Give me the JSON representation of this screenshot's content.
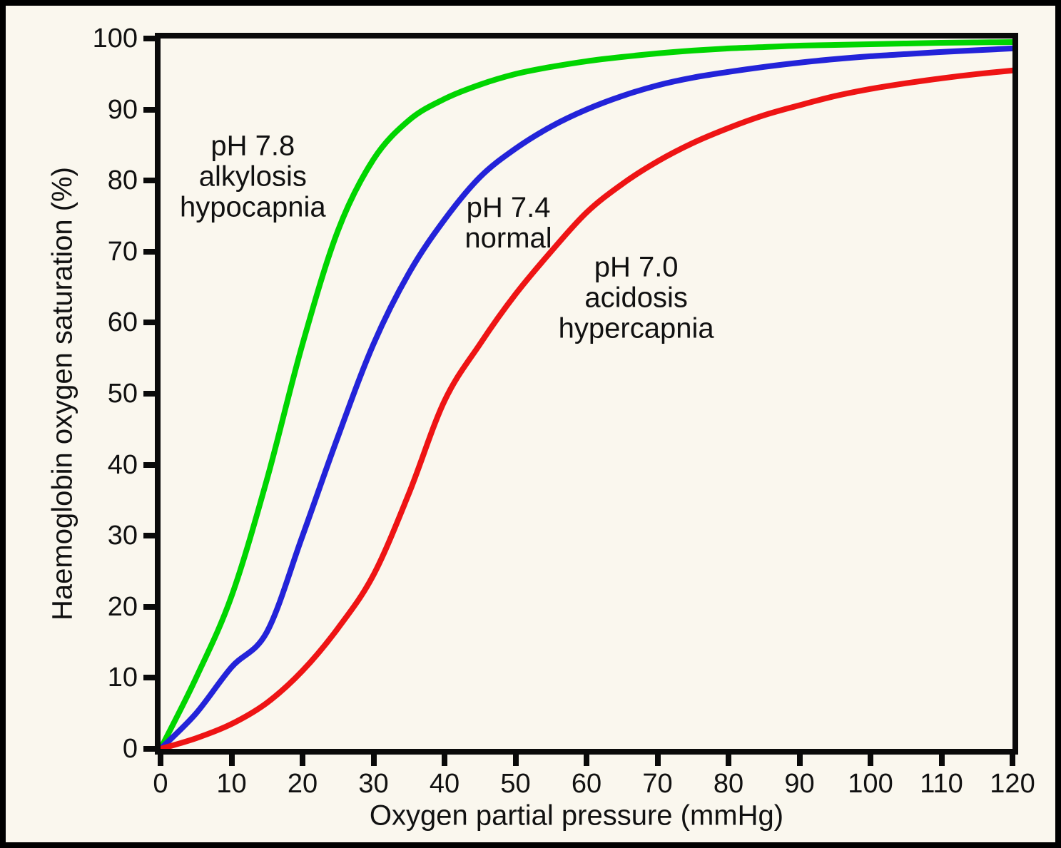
{
  "chart_data": {
    "type": "line",
    "xlabel": "Oxygen partial pressure (mmHg)",
    "ylabel": "Haemoglobin oxygen saturation (%)",
    "xlim": [
      0,
      120
    ],
    "ylim": [
      0,
      100
    ],
    "x_ticks": [
      0,
      10,
      20,
      30,
      40,
      50,
      60,
      70,
      80,
      90,
      100,
      110,
      120
    ],
    "y_ticks": [
      0,
      10,
      20,
      30,
      40,
      50,
      60,
      70,
      80,
      90,
      100
    ],
    "grid": false,
    "legend_position": "inline-annotations",
    "background_color": "#faf7ee",
    "axis_color": "#0a0a0a",
    "x": [
      0,
      5,
      10,
      15,
      20,
      25,
      30,
      35,
      40,
      45,
      50,
      55,
      60,
      65,
      70,
      75,
      80,
      85,
      90,
      95,
      100,
      105,
      110,
      115,
      120
    ],
    "series": [
      {
        "id": "ph-7-8",
        "label": "pH 7.8 alkylosis hypocapnia",
        "color": "#00d500",
        "p50_mmhg": 18,
        "values": [
          0,
          10,
          21.5,
          38,
          57,
          73,
          83,
          88.5,
          91.5,
          93.5,
          95,
          96,
          96.8,
          97.4,
          97.9,
          98.3,
          98.6,
          98.8,
          99.0,
          99.1,
          99.2,
          99.3,
          99.4,
          99.45,
          99.5
        ]
      },
      {
        "id": "ph-7-4",
        "label": "pH 7.4 normal",
        "color": "#2323d9",
        "p50_mmhg": 27,
        "values": [
          0,
          5,
          11.5,
          16.5,
          30,
          44,
          57,
          67,
          74.5,
          80.5,
          84.5,
          87.6,
          90,
          91.9,
          93.4,
          94.5,
          95.3,
          96,
          96.6,
          97.1,
          97.5,
          97.8,
          98.1,
          98.35,
          98.6
        ]
      },
      {
        "id": "ph-7-0",
        "label": "pH 7.0 acidosis hypercapnia",
        "color": "#ee1414",
        "p50_mmhg": 40,
        "values": [
          0,
          1.5,
          3.5,
          6.5,
          11,
          17,
          24.5,
          36,
          49,
          57,
          64,
          70,
          75.5,
          79.5,
          82.7,
          85.3,
          87.4,
          89.2,
          90.6,
          91.9,
          92.9,
          93.7,
          94.4,
          95.0,
          95.5
        ]
      }
    ],
    "annotations": [
      {
        "id": "ph-7-8",
        "lines": [
          "pH 7.8",
          "alkylosis",
          "hypocapnia"
        ],
        "x": 13,
        "y": 80.5
      },
      {
        "id": "ph-7-4",
        "lines": [
          "pH 7.4",
          "normal"
        ],
        "x": 49,
        "y": 74
      },
      {
        "id": "ph-7-0",
        "lines": [
          "pH 7.0",
          "acidosis",
          "hypercapnia"
        ],
        "x": 67,
        "y": 63.5
      }
    ]
  }
}
